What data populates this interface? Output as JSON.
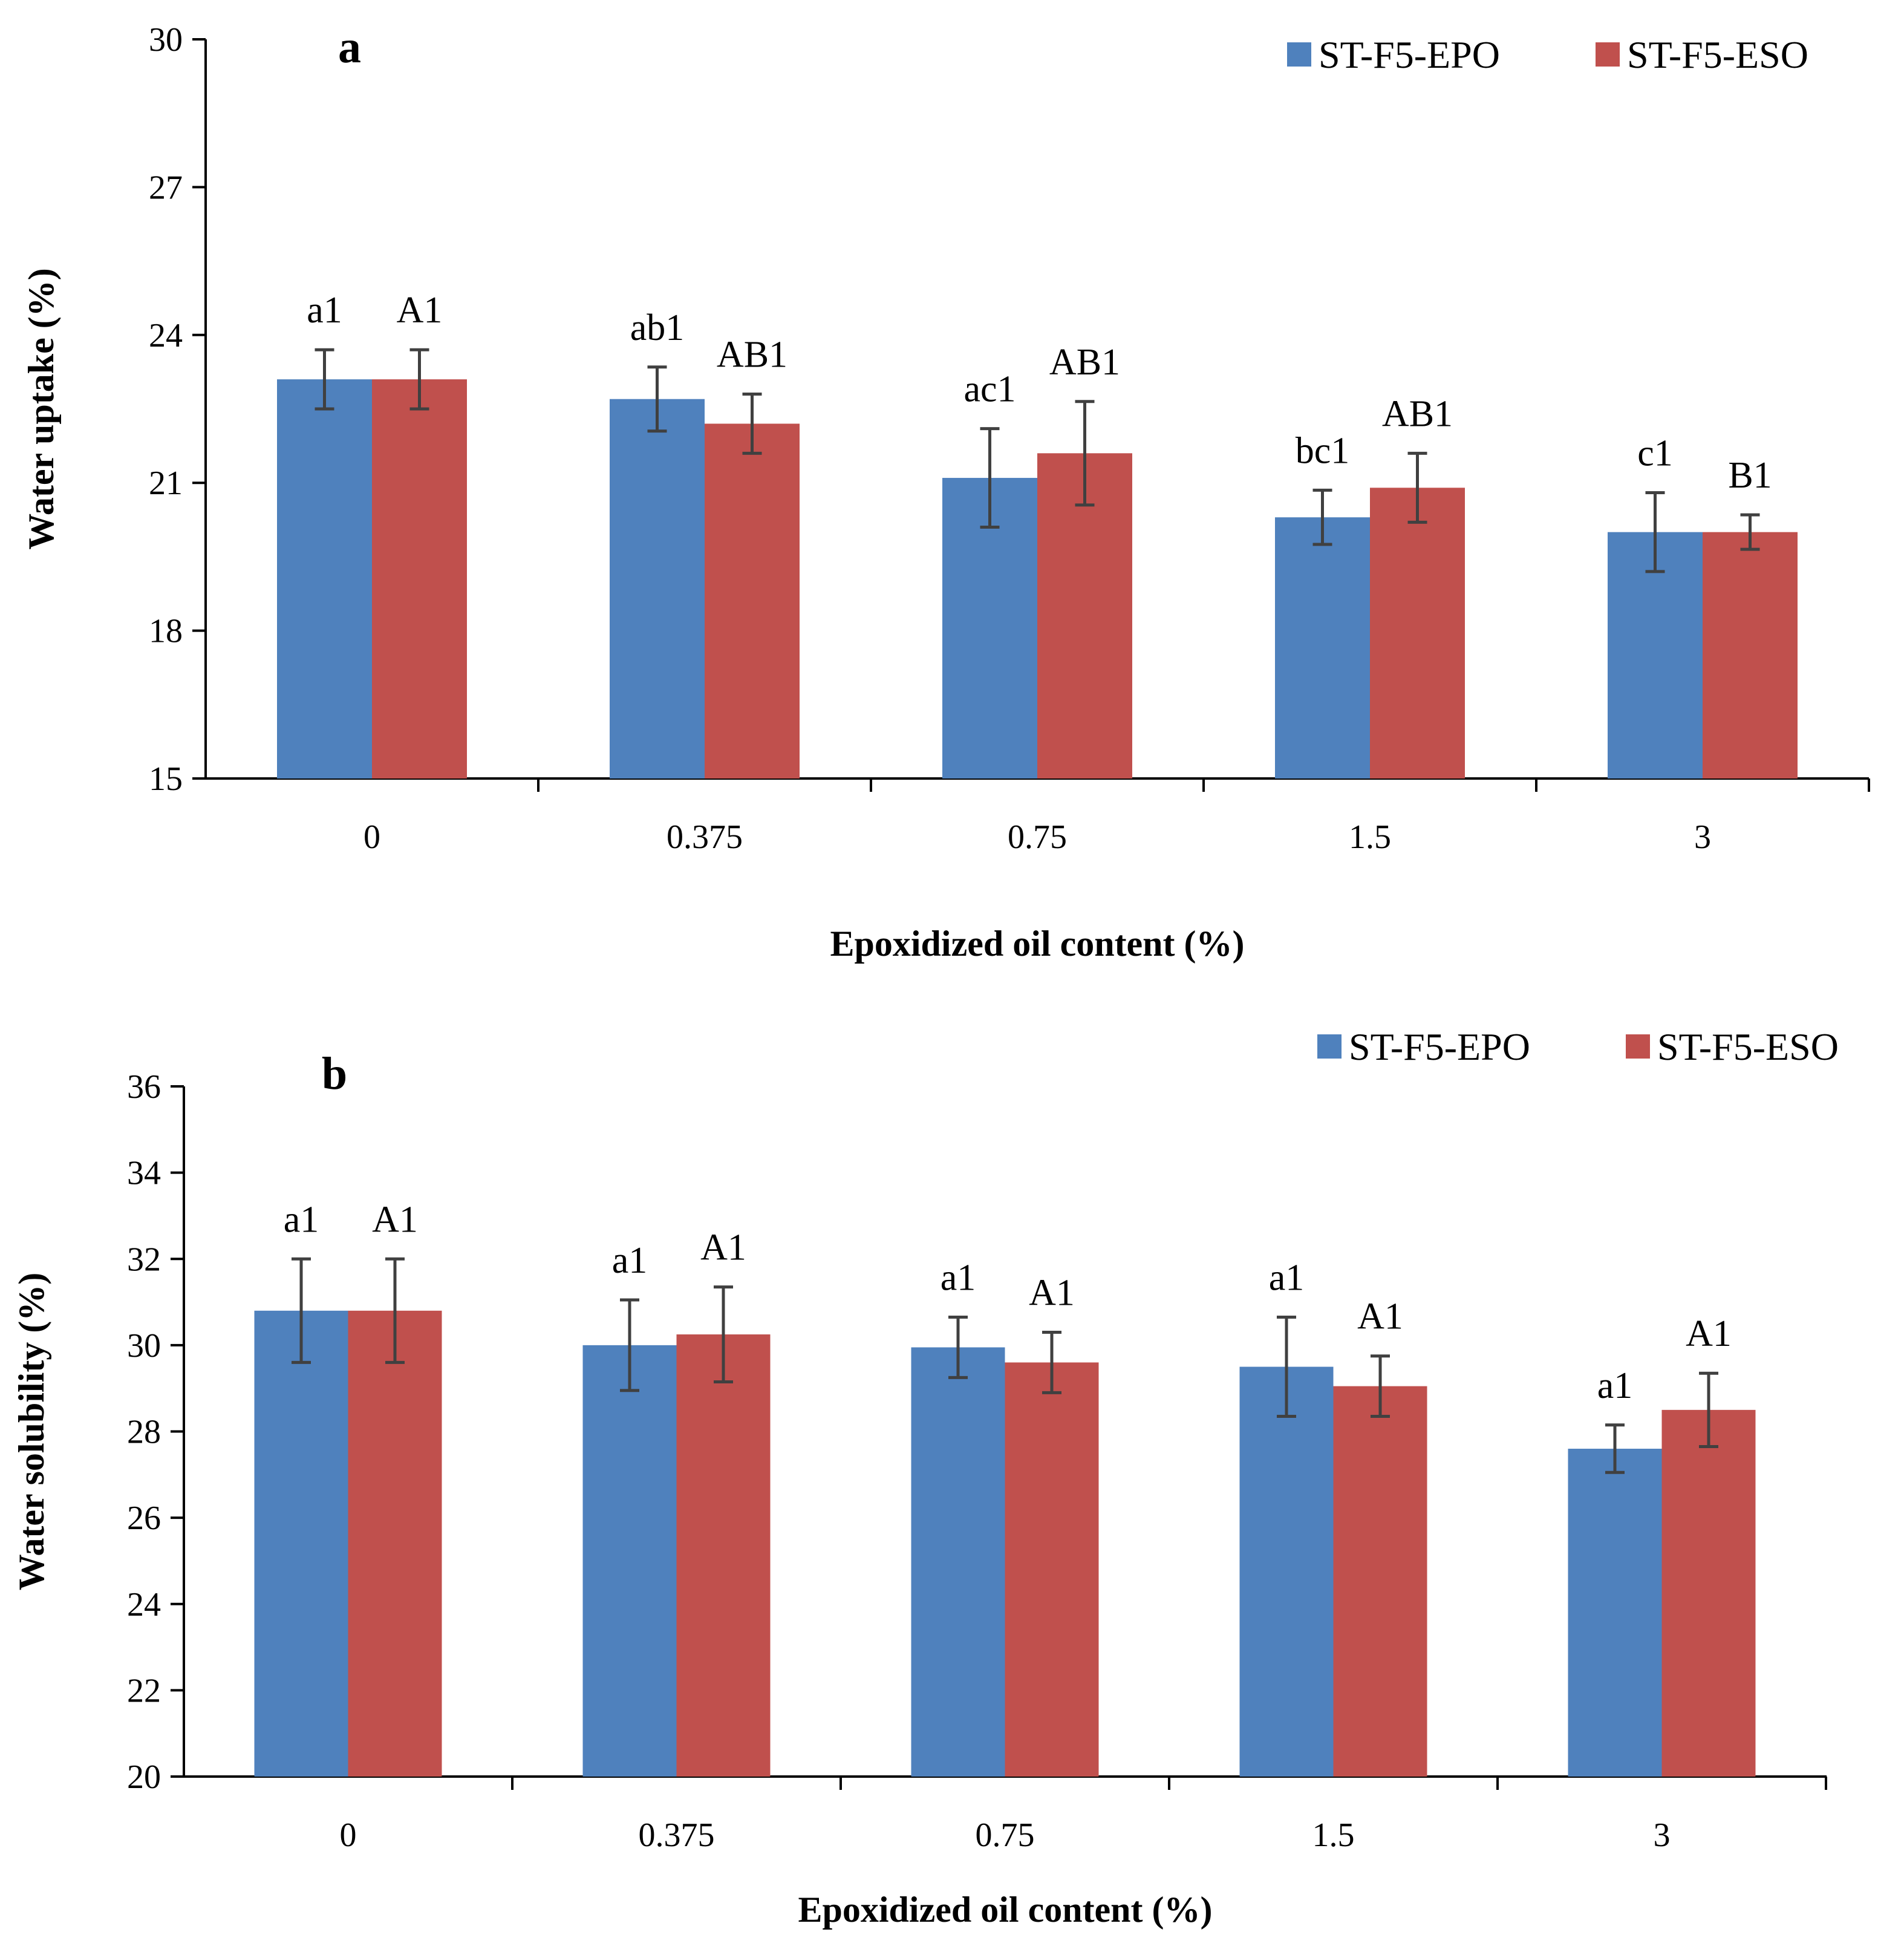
{
  "chart_data": [
    {
      "type": "bar",
      "panel_label": "a",
      "categories": [
        "0",
        "0.375",
        "0.75",
        "1.5",
        "3"
      ],
      "series": [
        {
          "name": "ST-F5-EPO",
          "color": "#4F81BD",
          "values": [
            23.1,
            22.7,
            21.1,
            20.3,
            20.0
          ],
          "errors": [
            0.6,
            0.65,
            1.0,
            0.55,
            0.8
          ],
          "labels": [
            "a1",
            "ab1",
            "ac1",
            "bc1",
            "c1"
          ]
        },
        {
          "name": "ST-F5-ESO",
          "color": "#C0504D",
          "values": [
            23.1,
            22.2,
            21.6,
            20.9,
            20.0
          ],
          "errors": [
            0.6,
            0.6,
            1.05,
            0.7,
            0.35
          ],
          "labels": [
            "A1",
            "AB1",
            "AB1",
            "AB1",
            "B1"
          ]
        }
      ],
      "title": "",
      "xlabel": "Epoxidized  oil content (%)",
      "ylabel": "Water uptake (%)",
      "ylim": [
        15,
        30
      ],
      "yticks": [
        15,
        18,
        21,
        24,
        27,
        30
      ],
      "grid": false,
      "legend": "top-right"
    },
    {
      "type": "bar",
      "panel_label": "b",
      "categories": [
        "0",
        "0.375",
        "0.75",
        "1.5",
        "3"
      ],
      "series": [
        {
          "name": "ST-F5-EPO",
          "color": "#4F81BD",
          "values": [
            30.8,
            30.0,
            29.95,
            29.5,
            27.6
          ],
          "errors": [
            1.2,
            1.05,
            0.7,
            1.15,
            0.55
          ],
          "labels": [
            "a1",
            "a1",
            "a1",
            "a1",
            "a1"
          ]
        },
        {
          "name": "ST-F5-ESO",
          "color": "#C0504D",
          "values": [
            30.8,
            30.25,
            29.6,
            29.05,
            28.5
          ],
          "errors": [
            1.2,
            1.1,
            0.7,
            0.7,
            0.85
          ],
          "labels": [
            "A1",
            "A1",
            "A1",
            "A1",
            "A1"
          ]
        }
      ],
      "title": "",
      "xlabel": "Epoxidized  oil content (%)",
      "ylabel": "Water solubility  (%)",
      "ylim": [
        20,
        36
      ],
      "yticks": [
        20,
        22,
        24,
        26,
        28,
        30,
        32,
        34,
        36
      ],
      "grid": false,
      "legend": "top-right"
    }
  ]
}
